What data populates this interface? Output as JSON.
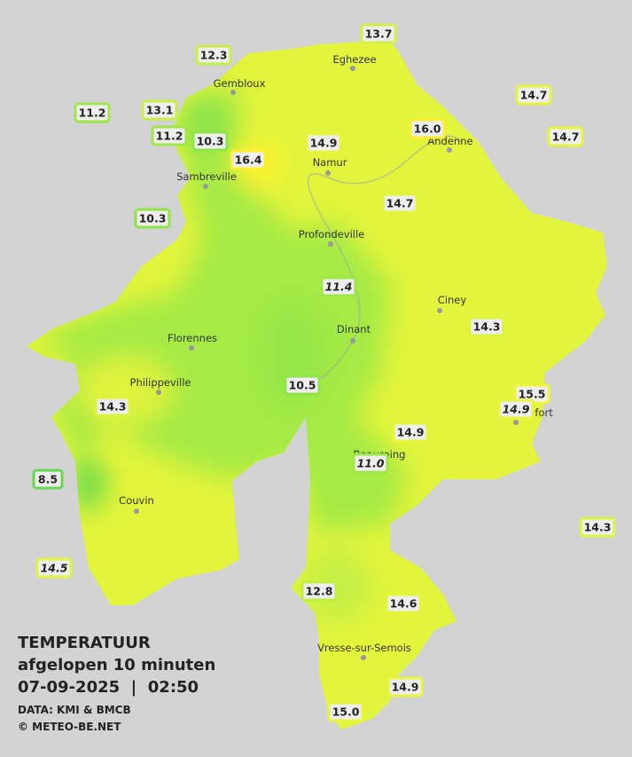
{
  "title": "TEMPERATUUR",
  "subtitle": "afgelopen 10 minuten",
  "datetime": "07-09-2025  |  02:50",
  "source": "DATA: KMI & BMCB",
  "credit": "© METEO-BE.NET",
  "cities": [
    {
      "name": "Eghezee"
    },
    {
      "name": "Gembloux"
    },
    {
      "name": "Andenne"
    },
    {
      "name": "Namur"
    },
    {
      "name": "Sambreville"
    },
    {
      "name": "Profondeville"
    },
    {
      "name": "Ciney"
    },
    {
      "name": "Florennes"
    },
    {
      "name": "Dinant"
    },
    {
      "name": "Philippeville"
    },
    {
      "name": "Rochefort"
    },
    {
      "name": "Beauraing"
    },
    {
      "name": "Couvin"
    },
    {
      "name": "Vresse-sur-Semois"
    }
  ],
  "stations": [
    {
      "label": "13.7",
      "color": "#d4f045"
    },
    {
      "label": "12.3",
      "color": "#c8ef45"
    },
    {
      "label": "14.7",
      "color": "#e4f53a"
    },
    {
      "label": "11.2",
      "color": "#9fe648"
    },
    {
      "label": "13.1",
      "color": "#c8ef45"
    },
    {
      "label": "16.0",
      "color": "#fff02e"
    },
    {
      "label": "14.7",
      "color": "#e4f53a"
    },
    {
      "label": "11.2",
      "color": "#9fe648"
    },
    {
      "label": "10.3",
      "color": "#8ee448"
    },
    {
      "label": "14.9",
      "color": "#e8f53a"
    },
    {
      "label": "16.4",
      "color": "#fff02e"
    },
    {
      "label": "14.7",
      "color": "#e4f53a"
    },
    {
      "label": "10.3",
      "color": "#8ee448"
    },
    {
      "label": "11.4",
      "color": "#9fe648",
      "italic": true
    },
    {
      "label": "14.3",
      "color": "#def43c"
    },
    {
      "label": "10.5",
      "color": "#8ee448"
    },
    {
      "label": "15.5",
      "color": "#f0f535"
    },
    {
      "label": "14.9",
      "color": "#e8f53a",
      "italic": true
    },
    {
      "label": "14.3",
      "color": "#def43c"
    },
    {
      "label": "14.9",
      "color": "#e8f53a"
    },
    {
      "label": "11.0",
      "color": "#9fe648",
      "italic": true
    },
    {
      "label": "8.5",
      "color": "#66d84f"
    },
    {
      "label": "14.3",
      "color": "#def43c"
    },
    {
      "label": "14.5",
      "color": "#e2f43b",
      "italic": true
    },
    {
      "label": "12.8",
      "color": "#c0ee45"
    },
    {
      "label": "14.6",
      "color": "#e2f43b"
    },
    {
      "label": "14.9",
      "color": "#e8f53a"
    },
    {
      "label": "15.0",
      "color": "#eaf53a"
    }
  ]
}
